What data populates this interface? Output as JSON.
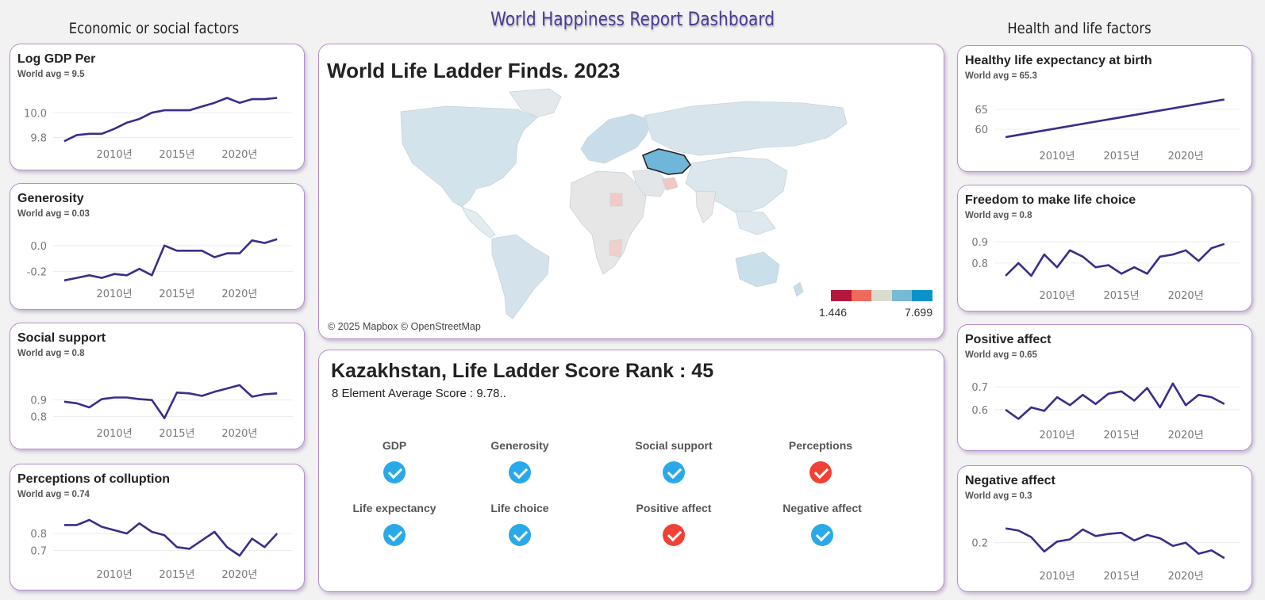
{
  "header": {
    "title": "World Happiness Report Dashboard",
    "left_column_title": "Economic or social factors",
    "right_column_title": "Health and life factors"
  },
  "colors": {
    "line": "#3e2b8a",
    "card_border": "#b58fcf",
    "check_good": "#2aa9e8",
    "check_bad": "#ef4135",
    "map_highlight": "#6fb6d9",
    "legend": [
      "#b5163b",
      "#ee6a5a",
      "#d8ddd0",
      "#78b9d6",
      "#0b93c9"
    ]
  },
  "left_cards": [
    {
      "id": "log-gdp",
      "title": "Log GDP Per",
      "subtitle": "World avg = 9.5",
      "yticks": [
        "10.0",
        "9.8"
      ]
    },
    {
      "id": "generosity",
      "title": "Generosity",
      "subtitle": "World avg = 0.03",
      "yticks": [
        "0.0",
        "-0.2"
      ]
    },
    {
      "id": "social-support",
      "title": "Social support",
      "subtitle": "World avg = 0.8",
      "yticks": [
        "0.9",
        "0.8"
      ]
    },
    {
      "id": "perceptions",
      "title": "Perceptions of colluption",
      "subtitle": "World avg = 0.74",
      "yticks": [
        "0.8",
        "0.7"
      ]
    }
  ],
  "right_cards": [
    {
      "id": "life-expectancy",
      "title": "Healthy life expectancy at birth",
      "subtitle": "World avg = 65.3",
      "yticks": [
        "65",
        "60"
      ]
    },
    {
      "id": "freedom",
      "title": "Freedom to make life choice",
      "subtitle": "World avg = 0.8",
      "yticks": [
        "0.9",
        "0.8"
      ]
    },
    {
      "id": "positive-affect",
      "title": "Positive affect",
      "subtitle": "World avg = 0.65",
      "yticks": [
        "0.7",
        "0.6"
      ]
    },
    {
      "id": "negative-affect",
      "title": "Negative affect",
      "subtitle": "World avg = 0.3",
      "yticks": [
        "0.2"
      ]
    }
  ],
  "xticks": [
    "2010년",
    "2015년",
    "2020년"
  ],
  "chart_data": [
    {
      "type": "line",
      "title": "Log GDP Per",
      "x": [
        2006,
        2007,
        2008,
        2009,
        2010,
        2011,
        2012,
        2013,
        2014,
        2015,
        2016,
        2017,
        2018,
        2019,
        2020,
        2021,
        2022,
        2023
      ],
      "values": [
        9.77,
        9.82,
        9.83,
        9.83,
        9.87,
        9.92,
        9.95,
        10.0,
        10.02,
        10.02,
        10.02,
        10.05,
        10.08,
        10.12,
        10.08,
        10.11,
        10.11,
        10.12
      ],
      "ylim": [
        9.72,
        10.2
      ]
    },
    {
      "type": "line",
      "title": "Generosity",
      "x": [
        2006,
        2007,
        2008,
        2009,
        2010,
        2011,
        2012,
        2013,
        2014,
        2015,
        2016,
        2017,
        2018,
        2019,
        2020,
        2021,
        2022,
        2023
      ],
      "values": [
        -0.27,
        -0.25,
        -0.23,
        -0.25,
        -0.22,
        -0.23,
        -0.18,
        -0.23,
        0.0,
        -0.04,
        -0.04,
        -0.04,
        -0.09,
        -0.06,
        -0.06,
        0.04,
        0.02,
        0.05
      ],
      "ylim": [
        -0.32,
        0.14
      ]
    },
    {
      "type": "line",
      "title": "Social support",
      "x": [
        2006,
        2007,
        2008,
        2009,
        2010,
        2011,
        2012,
        2013,
        2014,
        2015,
        2016,
        2017,
        2018,
        2019,
        2020,
        2021,
        2022,
        2023
      ],
      "values": [
        0.89,
        0.88,
        0.855,
        0.905,
        0.915,
        0.915,
        0.905,
        0.9,
        0.79,
        0.945,
        0.94,
        0.925,
        0.95,
        0.97,
        0.99,
        0.92,
        0.935,
        0.94
      ],
      "ylim": [
        0.74,
        1.1
      ]
    },
    {
      "type": "line",
      "title": "Perceptions of colluption",
      "x": [
        2006,
        2007,
        2008,
        2009,
        2010,
        2011,
        2012,
        2013,
        2014,
        2015,
        2016,
        2017,
        2018,
        2019,
        2020,
        2021,
        2022,
        2023
      ],
      "values": [
        0.85,
        0.85,
        0.88,
        0.84,
        0.82,
        0.8,
        0.86,
        0.81,
        0.79,
        0.72,
        0.71,
        0.76,
        0.81,
        0.72,
        0.67,
        0.77,
        0.72,
        0.8
      ],
      "ylim": [
        0.6,
        0.95
      ]
    },
    {
      "type": "line",
      "title": "Healthy life expectancy at birth",
      "x": [
        2006,
        2023
      ],
      "values": [
        58.0,
        67.5
      ],
      "ylim": [
        55,
        70
      ]
    },
    {
      "type": "line",
      "title": "Freedom to make life choice",
      "x": [
        2006,
        2007,
        2008,
        2009,
        2010,
        2011,
        2012,
        2013,
        2014,
        2015,
        2016,
        2017,
        2018,
        2019,
        2020,
        2021,
        2022,
        2023
      ],
      "values": [
        0.74,
        0.8,
        0.74,
        0.84,
        0.78,
        0.86,
        0.83,
        0.78,
        0.79,
        0.75,
        0.78,
        0.75,
        0.83,
        0.84,
        0.86,
        0.81,
        0.87,
        0.89
      ],
      "ylim": [
        0.68,
        0.96
      ]
    },
    {
      "type": "line",
      "title": "Positive affect",
      "x": [
        2006,
        2007,
        2008,
        2009,
        2010,
        2011,
        2012,
        2013,
        2014,
        2015,
        2016,
        2017,
        2018,
        2019,
        2020,
        2021,
        2022,
        2023
      ],
      "values": [
        0.6,
        0.56,
        0.61,
        0.595,
        0.655,
        0.62,
        0.665,
        0.625,
        0.67,
        0.68,
        0.64,
        0.695,
        0.61,
        0.715,
        0.62,
        0.665,
        0.655,
        0.625
      ],
      "ylim": [
        0.52,
        0.78
      ]
    },
    {
      "type": "line",
      "title": "Negative affect",
      "x": [
        2006,
        2007,
        2008,
        2009,
        2010,
        2011,
        2012,
        2013,
        2014,
        2015,
        2016,
        2017,
        2018,
        2019,
        2020,
        2021,
        2022,
        2023
      ],
      "values": [
        0.265,
        0.255,
        0.225,
        0.16,
        0.205,
        0.215,
        0.26,
        0.23,
        0.24,
        0.245,
        0.21,
        0.235,
        0.22,
        0.185,
        0.2,
        0.15,
        0.165,
        0.13
      ],
      "ylim": [
        0.08,
        0.35
      ]
    }
  ],
  "map_panel": {
    "title": "World Life Ladder Finds. 2023",
    "credit": "© 2025 Mapbox © OpenStreetMap",
    "legend_min": "1.446",
    "legend_max": "7.699"
  },
  "rank_panel": {
    "title": "Kazakhstan, Life Ladder Score Rank : 45",
    "subtitle": "8 Element Average Score : 9.78..",
    "factors": [
      {
        "label": "GDP",
        "status": "good"
      },
      {
        "label": "Generosity",
        "status": "good"
      },
      {
        "label": "Social support",
        "status": "good"
      },
      {
        "label": "Perceptions",
        "status": "bad"
      },
      {
        "label": "Life expectancy",
        "status": "good"
      },
      {
        "label": "Life choice",
        "status": "good"
      },
      {
        "label": "Positive affect",
        "status": "bad"
      },
      {
        "label": "Negative affect",
        "status": "good"
      }
    ]
  }
}
